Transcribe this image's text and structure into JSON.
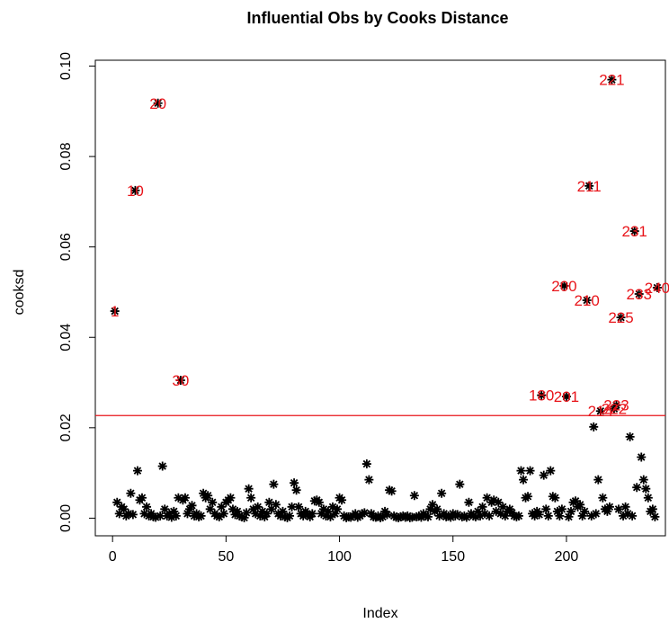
{
  "chart_data": {
    "type": "scatter",
    "title": "Influential Obs by Cooks Distance",
    "x_label": "Index",
    "y_label": "cooksd",
    "xlim": [
      -7.6,
      243.6
    ],
    "ylim": [
      -0.0039,
      0.1013
    ],
    "xticks": [
      0,
      50,
      100,
      150,
      200
    ],
    "yticks": [
      {
        "value": 0,
        "label": "0.00"
      },
      {
        "value": 0.02,
        "label": "0.02"
      },
      {
        "value": 0.04,
        "label": "0.04"
      },
      {
        "value": 0.06,
        "label": "0.06"
      },
      {
        "value": 0.08,
        "label": "0.08"
      },
      {
        "value": 0.1,
        "label": "0.10"
      }
    ],
    "color": "#000000",
    "label_color": "#e8141a",
    "hline": 0.0227,
    "hline_color": "#e8141a",
    "x": [
      1,
      2,
      3,
      4,
      5,
      6,
      7,
      8,
      9,
      10,
      11,
      12,
      13,
      14,
      15,
      16,
      17,
      18,
      19,
      20,
      21,
      22,
      23,
      24,
      25,
      26,
      27,
      28,
      29,
      30,
      31,
      32,
      33,
      34,
      35,
      36,
      37,
      38,
      39,
      40,
      41,
      42,
      43,
      44,
      45,
      46,
      47,
      48,
      49,
      50,
      51,
      52,
      53,
      54,
      55,
      56,
      57,
      58,
      59,
      60,
      61,
      62,
      63,
      64,
      65,
      66,
      67,
      68,
      69,
      70,
      71,
      72,
      73,
      74,
      75,
      76,
      77,
      78,
      79,
      80,
      81,
      82,
      83,
      84,
      85,
      86,
      87,
      88,
      89,
      90,
      91,
      92,
      93,
      94,
      95,
      96,
      97,
      98,
      99,
      100,
      101,
      102,
      103,
      104,
      105,
      106,
      107,
      108,
      109,
      110,
      111,
      112,
      113,
      114,
      115,
      116,
      117,
      118,
      119,
      120,
      121,
      122,
      123,
      124,
      125,
      126,
      127,
      128,
      129,
      130,
      131,
      132,
      133,
      134,
      135,
      136,
      137,
      138,
      139,
      140,
      141,
      142,
      143,
      144,
      145,
      146,
      147,
      148,
      149,
      150,
      151,
      152,
      153,
      154,
      155,
      156,
      157,
      158,
      159,
      160,
      161,
      162,
      163,
      164,
      165,
      166,
      167,
      168,
      169,
      170,
      171,
      172,
      173,
      174,
      175,
      176,
      177,
      178,
      179,
      180,
      181,
      182,
      183,
      184,
      185,
      186,
      187,
      188,
      189,
      190,
      191,
      192,
      193,
      194,
      195,
      196,
      197,
      198,
      199,
      200,
      201,
      202,
      203,
      204,
      205,
      206,
      207,
      208,
      209,
      210,
      211,
      212,
      213,
      214,
      215,
      216,
      217,
      218,
      219,
      220,
      221,
      222,
      223,
      224,
      225,
      226,
      227,
      228,
      229,
      230,
      231,
      232,
      233,
      234,
      235,
      236,
      237,
      238,
      239,
      240
    ],
    "values": [
      0.0458,
      0.0035,
      0.001,
      0.0025,
      0.002,
      0.0005,
      0.001,
      0.0055,
      0.0008,
      0.0725,
      0.0105,
      0.004,
      0.0045,
      0.001,
      0.0025,
      0.0005,
      0.001,
      0.0003,
      0.0002,
      0.0918,
      0.0005,
      0.0115,
      0.002,
      0.0005,
      0.001,
      0.0002,
      0.0015,
      0.0005,
      0.0045,
      0.0305,
      0.004,
      0.0045,
      0.001,
      0.002,
      0.0028,
      0.0005,
      0.001,
      0.0003,
      0.0005,
      0.0055,
      0.0045,
      0.005,
      0.002,
      0.0035,
      0.001,
      0.0005,
      0.0003,
      0.0025,
      0.001,
      0.0035,
      0.004,
      0.0045,
      0.002,
      0.0008,
      0.0015,
      0.0005,
      0.0003,
      0.0001,
      0.0012,
      0.0065,
      0.0045,
      0.002,
      0.001,
      0.0025,
      0.0005,
      0.0015,
      0.0003,
      0.001,
      0.0035,
      0.002,
      0.0075,
      0.003,
      0.001,
      0.0005,
      0.0015,
      0.0003,
      0.0001,
      0.0005,
      0.0025,
      0.0078,
      0.0062,
      0.0025,
      0.001,
      0.0005,
      0.0015,
      0.0008,
      0.0003,
      0.001,
      0.0038,
      0.004,
      0.0035,
      0.001,
      0.002,
      0.0005,
      0.0015,
      0.0003,
      0.0025,
      0.001,
      0.002,
      0.0045,
      0.004,
      0.0005,
      0.0001,
      0.0003,
      0.0002,
      0.0005,
      0.001,
      0.0002,
      0.0005,
      0.001,
      0.0012,
      0.012,
      0.0085,
      0.001,
      0.0003,
      0.0002,
      0.0005,
      0.0001,
      0.0003,
      0.0015,
      0.0008,
      0.0062,
      0.006,
      0.0005,
      0.0002,
      0.0001,
      0.0003,
      0.0005,
      0.0002,
      0.0005,
      0.0001,
      0.0002,
      0.005,
      0.0003,
      0.0005,
      0.0002,
      0.001,
      0.0005,
      0.0003,
      0.002,
      0.003,
      0.0015,
      0.002,
      0.0005,
      0.0055,
      0.001,
      0.0003,
      0.0005,
      0.0002,
      0.001,
      0.0005,
      0.0008,
      0.0075,
      0.0003,
      0.0005,
      0.0002,
      0.0035,
      0.001,
      0.0005,
      0.0003,
      0.0015,
      0.0005,
      0.0025,
      0.001,
      0.0045,
      0.0005,
      0.0035,
      0.004,
      0.0015,
      0.0035,
      0.001,
      0.0025,
      0.0005,
      0.0015,
      0.002,
      0.0012,
      0.0005,
      0.0003,
      0.0005,
      0.0105,
      0.0085,
      0.0045,
      0.0048,
      0.0105,
      0.001,
      0.0005,
      0.0015,
      0.0008,
      0.0272,
      0.0095,
      0.002,
      0.0005,
      0.0105,
      0.0048,
      0.0045,
      0.0015,
      0.0005,
      0.002,
      0.0514,
      0.0269,
      0.0003,
      0.0015,
      0.0035,
      0.0038,
      0.0025,
      0.003,
      0.0005,
      0.0015,
      0.0482,
      0.0735,
      0.0005,
      0.0202,
      0.001,
      0.0085,
      0.0237,
      0.0045,
      0.002,
      0.0015,
      0.0025,
      0.097,
      0.0242,
      0.025,
      0.002,
      0.0444,
      0.0005,
      0.0025,
      0.001,
      0.018,
      0.0005,
      0.0635,
      0.0068,
      0.0496,
      0.0135,
      0.0085,
      0.0065,
      0.0045,
      0.0015,
      0.002,
      0.0003,
      0.051
    ],
    "point_labels": [
      "1",
      null,
      null,
      null,
      null,
      null,
      null,
      null,
      null,
      "10",
      null,
      null,
      null,
      null,
      null,
      null,
      null,
      null,
      null,
      "20",
      null,
      null,
      null,
      null,
      null,
      null,
      null,
      null,
      null,
      "30",
      null,
      null,
      null,
      null,
      null,
      null,
      null,
      null,
      null,
      null,
      null,
      null,
      null,
      null,
      null,
      null,
      null,
      null,
      null,
      null,
      null,
      null,
      null,
      null,
      null,
      null,
      null,
      null,
      null,
      null,
      null,
      null,
      null,
      null,
      null,
      null,
      null,
      null,
      null,
      null,
      null,
      null,
      null,
      null,
      null,
      null,
      null,
      null,
      null,
      null,
      null,
      null,
      null,
      null,
      null,
      null,
      null,
      null,
      null,
      null,
      null,
      null,
      null,
      null,
      null,
      null,
      null,
      null,
      null,
      null,
      null,
      null,
      null,
      null,
      null,
      null,
      null,
      null,
      null,
      null,
      null,
      null,
      null,
      null,
      null,
      null,
      null,
      null,
      null,
      null,
      null,
      null,
      null,
      null,
      null,
      null,
      null,
      null,
      null,
      null,
      null,
      null,
      null,
      null,
      null,
      null,
      null,
      null,
      null,
      null,
      null,
      null,
      null,
      null,
      null,
      null,
      null,
      null,
      null,
      null,
      null,
      null,
      null,
      null,
      null,
      null,
      null,
      null,
      null,
      null,
      null,
      null,
      null,
      null,
      null,
      null,
      null,
      null,
      null,
      null,
      null,
      null,
      null,
      null,
      null,
      null,
      null,
      null,
      null,
      null,
      null,
      null,
      null,
      null,
      null,
      null,
      null,
      null,
      "180",
      null,
      null,
      null,
      null,
      null,
      null,
      null,
      null,
      null,
      "200",
      "201",
      null,
      null,
      null,
      null,
      null,
      null,
      null,
      null,
      "210",
      "211",
      null,
      null,
      null,
      null,
      "214",
      null,
      null,
      null,
      null,
      "221",
      "222",
      "223",
      null,
      "225",
      null,
      null,
      null,
      null,
      null,
      "231",
      null,
      "233",
      null,
      null,
      null,
      null,
      null,
      null,
      null,
      "240"
    ]
  }
}
